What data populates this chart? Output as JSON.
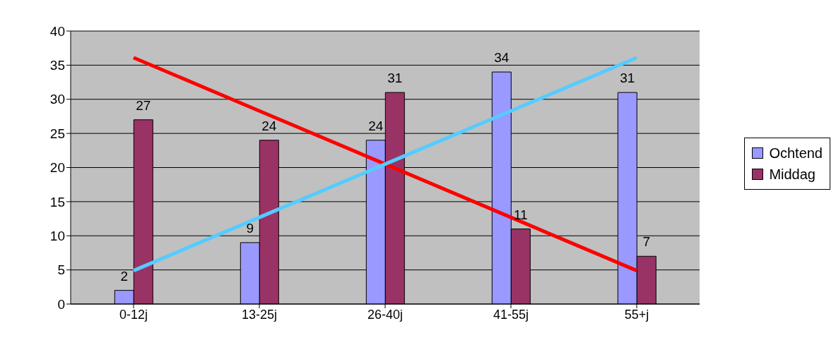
{
  "chart_data": {
    "type": "bar",
    "categories": [
      "0-12j",
      "13-25j",
      "26-40j",
      "41-55j",
      "55+j"
    ],
    "series": [
      {
        "name": "Ochtend",
        "color": "#9999ff",
        "values": [
          2,
          9,
          24,
          34,
          31
        ],
        "value_labels": [
          "2",
          "9",
          "24",
          "34",
          "31"
        ]
      },
      {
        "name": "Middag",
        "color": "#993366",
        "values": [
          27,
          24,
          31,
          11,
          7
        ],
        "value_labels": [
          "27",
          "24",
          "31",
          "11",
          "7"
        ]
      },
      {
        "type": "line",
        "color": "#ff0000",
        "values": [
          36.1,
          28.3,
          20.5,
          12.7,
          4.9
        ]
      },
      {
        "type": "line",
        "color": "#55ccff",
        "values": [
          4.9,
          12.7,
          20.5,
          28.3,
          36.1
        ]
      }
    ],
    "ylim": [
      0,
      40
    ],
    "yticks": [
      0,
      5,
      10,
      15,
      20,
      25,
      30,
      35,
      40
    ],
    "grid": "y",
    "legend": "right"
  }
}
